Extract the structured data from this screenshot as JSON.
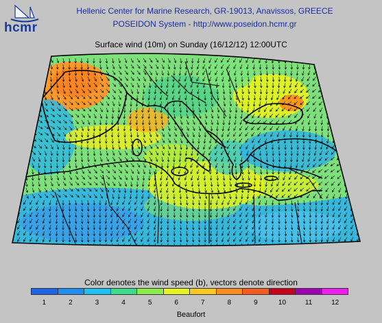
{
  "header": {
    "logo_text": "hcmr",
    "line1": "Hellenic Center for Marine Research, GR-19013, Anavissos, GREECE",
    "line2": "POSEIDON System - http://www.poseidon.hcmr.gr"
  },
  "map": {
    "title": "Surface wind (10m) on Sunday (16/12/12) 12:00UTC",
    "region": "Mediterranean Sea",
    "field": "Surface wind (10m)"
  },
  "legend": {
    "caption": "Color denotes the wind speed (b), vectors denote direction",
    "unit": "Beaufort",
    "labels": [
      "1",
      "2",
      "3",
      "4",
      "5",
      "6",
      "7",
      "8",
      "9",
      "10",
      "11",
      "12"
    ],
    "colors": [
      "#1e64e6",
      "#1e8ff0",
      "#1ec3f5",
      "#3cdc8c",
      "#8ced4a",
      "#e6f51e",
      "#ffc81e",
      "#ff8c1e",
      "#f55a1e",
      "#c8001e",
      "#a000b4",
      "#f01ef0"
    ]
  }
}
